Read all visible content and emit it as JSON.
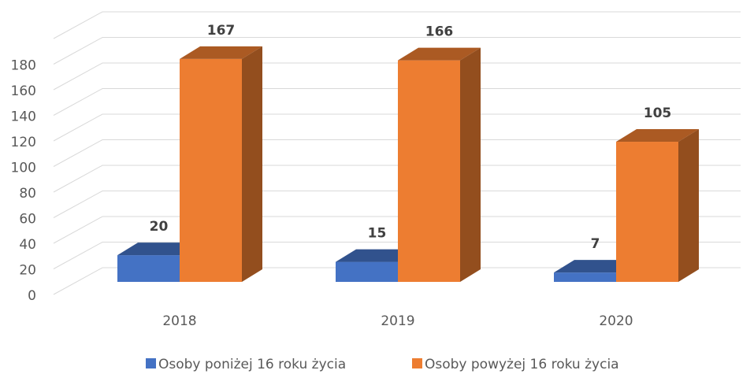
{
  "chart_data": {
    "type": "bar3d",
    "categories": [
      "2018",
      "2019",
      "2020"
    ],
    "series": [
      {
        "name": "Osoby poniżej 16 roku życia",
        "color": "#4472c4",
        "values": [
          20,
          15,
          7
        ]
      },
      {
        "name": "Osoby powyżej 16 roku życia",
        "color": "#ed7d31",
        "values": [
          167,
          166,
          105
        ]
      }
    ],
    "ylim": [
      0,
      200
    ],
    "yticks": [
      0,
      20,
      40,
      60,
      80,
      100,
      120,
      140,
      160,
      180
    ],
    "grid": true
  }
}
